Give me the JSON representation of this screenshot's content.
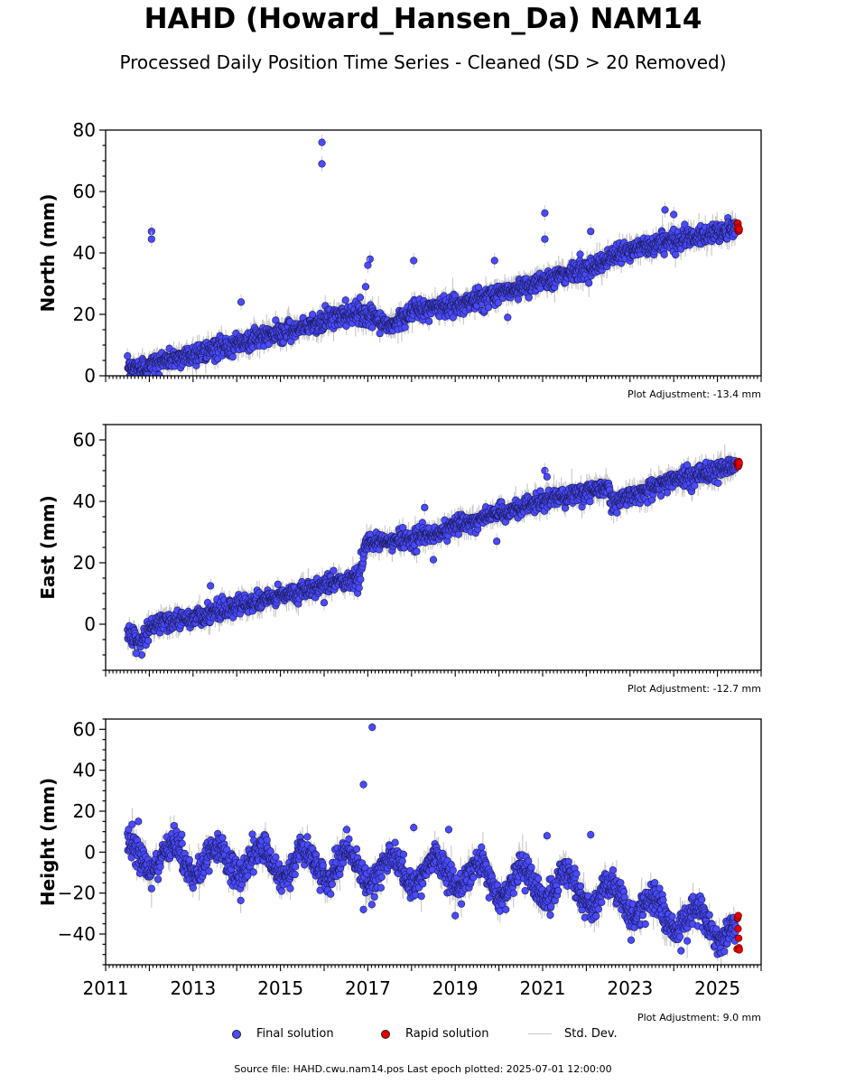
{
  "title": "HAHD (Howard_Hansen_Da) NAM14",
  "subtitle": "Processed Daily Position Time Series - Cleaned (SD > 20 Removed)",
  "colors": {
    "final": "#4a4aff",
    "rapid": "#e60000",
    "stddev": "#c8c8c8"
  },
  "legend": {
    "final": "Final solution",
    "rapid": "Rapid solution",
    "stddev": "Std. Dev."
  },
  "source": "Source file: HAHD.cwu.nam14.pos  Last epoch plotted: 2025-07-01 12:00:00",
  "chart_data": [
    {
      "type": "scatter",
      "ylabel": "North (mm)",
      "adjustment": "Plot Adjustment: -13.4 mm",
      "xlim": [
        2011.0,
        2026.0
      ],
      "ylim": [
        0,
        80
      ],
      "yticks": [
        0,
        20,
        40,
        60,
        80
      ],
      "xtick_labels_shown": false,
      "trend": [
        [
          2011.5,
          2
        ],
        [
          2013.0,
          7
        ],
        [
          2015.0,
          14
        ],
        [
          2016.8,
          21
        ],
        [
          2017.5,
          16
        ],
        [
          2018.0,
          21
        ],
        [
          2019.0,
          23
        ],
        [
          2020.0,
          27
        ],
        [
          2021.0,
          31
        ],
        [
          2022.0,
          35
        ],
        [
          2023.0,
          41
        ],
        [
          2024.0,
          44
        ],
        [
          2025.5,
          48
        ]
      ],
      "scatter_sd": 1.6,
      "outliers": [
        [
          2012.05,
          47
        ],
        [
          2012.05,
          44.5
        ],
        [
          2014.1,
          24
        ],
        [
          2015.95,
          76
        ],
        [
          2015.95,
          69
        ],
        [
          2017.05,
          38
        ],
        [
          2017.0,
          36
        ],
        [
          2018.05,
          37.5
        ],
        [
          2019.9,
          37.5
        ],
        [
          2020.2,
          19
        ],
        [
          2021.05,
          53
        ],
        [
          2021.05,
          44.5
        ],
        [
          2022.1,
          47
        ],
        [
          2023.8,
          54
        ],
        [
          2024.0,
          52.5
        ],
        [
          2016.95,
          29
        ]
      ],
      "rapid": {
        "x_range": [
          2025.45,
          2025.5
        ],
        "y_range": [
          47,
          50
        ]
      }
    },
    {
      "type": "scatter",
      "ylabel": "East (mm)",
      "adjustment": "Plot Adjustment: -12.7 mm",
      "xlim": [
        2011.0,
        2026.0
      ],
      "ylim": [
        -15,
        65
      ],
      "yticks": [
        0,
        20,
        40,
        60
      ],
      "xtick_labels_shown": false,
      "trend": [
        [
          2011.5,
          -3
        ],
        [
          2011.8,
          -6
        ],
        [
          2012.1,
          0
        ],
        [
          2013.0,
          2
        ],
        [
          2014.0,
          6
        ],
        [
          2015.0,
          9
        ],
        [
          2016.0,
          13
        ],
        [
          2016.8,
          15
        ],
        [
          2016.95,
          26
        ],
        [
          2018.0,
          28
        ],
        [
          2018.5,
          29
        ],
        [
          2019.0,
          32
        ],
        [
          2020.0,
          36
        ],
        [
          2021.0,
          40
        ],
        [
          2022.0,
          43
        ],
        [
          2022.5,
          45
        ],
        [
          2022.6,
          39
        ],
        [
          2023.0,
          42
        ],
        [
          2024.0,
          47
        ],
        [
          2025.0,
          50
        ],
        [
          2025.5,
          52
        ]
      ],
      "scatter_sd": 1.5,
      "outliers": [
        [
          2011.7,
          -9.5
        ],
        [
          2013.4,
          12.5
        ],
        [
          2016.0,
          7
        ],
        [
          2018.3,
          38
        ],
        [
          2018.5,
          21
        ],
        [
          2019.95,
          27
        ],
        [
          2021.05,
          50
        ],
        [
          2021.1,
          48
        ]
      ],
      "rapid": {
        "x_range": [
          2025.45,
          2025.5
        ],
        "y_range": [
          50.5,
          53
        ]
      }
    },
    {
      "type": "scatter",
      "ylabel": "Height (mm)",
      "adjustment": "Plot Adjustment: 9.0 mm",
      "xlim": [
        2011.0,
        2026.0
      ],
      "ylim": [
        -55,
        65
      ],
      "yticks": [
        -40,
        -20,
        0,
        20,
        40,
        60
      ],
      "xticks": [
        2011,
        2013,
        2015,
        2017,
        2019,
        2021,
        2023,
        2025
      ],
      "xtick_labels_shown": true,
      "trend": [
        [
          2011.5,
          -2
        ],
        [
          2015.0,
          -5
        ],
        [
          2017.0,
          -8
        ],
        [
          2019.0,
          -10
        ],
        [
          2020.0,
          -14
        ],
        [
          2021.0,
          -16
        ],
        [
          2022.0,
          -19
        ],
        [
          2023.0,
          -25
        ],
        [
          2024.0,
          -31
        ],
        [
          2025.5,
          -38
        ]
      ],
      "annual_amplitude": 7,
      "scatter_sd": 3.5,
      "outliers": [
        [
          2011.75,
          15
        ],
        [
          2016.9,
          33
        ],
        [
          2017.1,
          61
        ],
        [
          2018.05,
          12
        ],
        [
          2018.85,
          11
        ],
        [
          2022.1,
          8.5
        ],
        [
          2021.1,
          8
        ],
        [
          2019.0,
          -31
        ],
        [
          2016.9,
          -28
        ]
      ],
      "rapid": {
        "x_range": [
          2025.45,
          2025.5
        ],
        "y_range": [
          -48,
          -31
        ]
      }
    }
  ]
}
